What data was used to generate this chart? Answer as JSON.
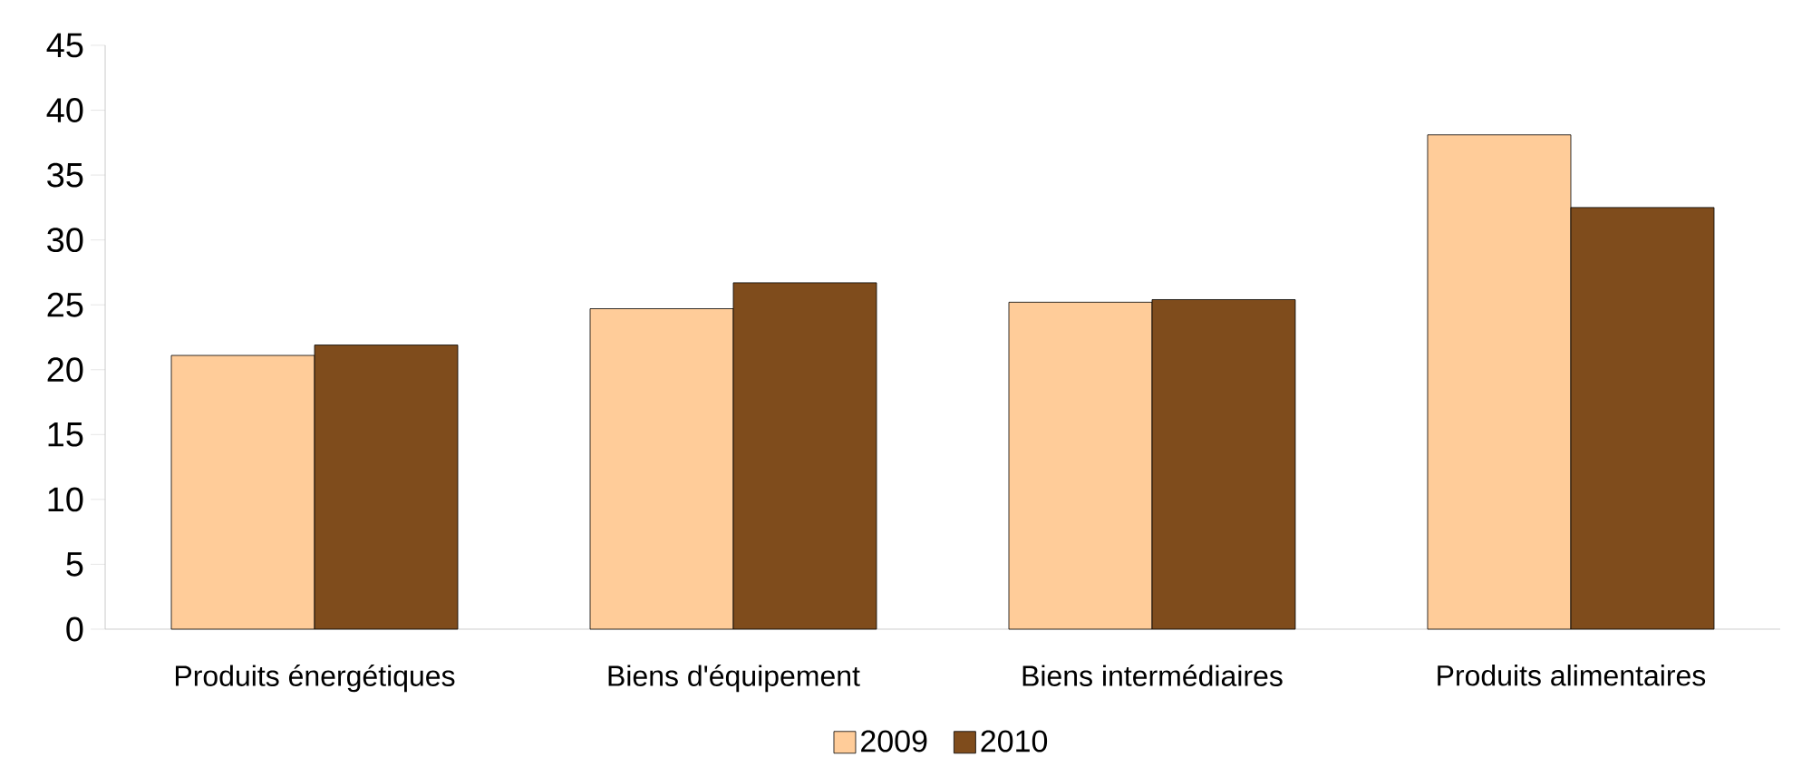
{
  "chart_data": {
    "type": "bar",
    "categories": [
      "Produits énergétiques",
      "Biens d'équipement",
      "Biens intermédiaires",
      "Produits alimentaires"
    ],
    "series": [
      {
        "name": "2009",
        "color": "#ffcc99",
        "values": [
          21.1,
          24.7,
          25.2,
          38.1
        ]
      },
      {
        "name": "2010",
        "color": "#7f4c1c",
        "values": [
          21.9,
          26.7,
          25.4,
          32.5
        ]
      }
    ],
    "ylim": [
      0,
      45
    ],
    "yticks": [
      0,
      5,
      10,
      15,
      20,
      25,
      30,
      35,
      40,
      45
    ],
    "legend": "bottom"
  }
}
